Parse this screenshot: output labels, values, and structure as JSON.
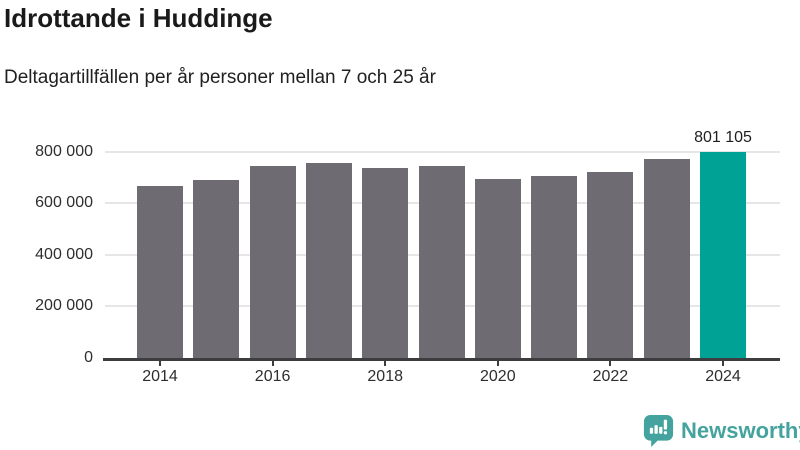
{
  "header": {
    "title": "Idrottande i Huddinge",
    "subtitle": "Deltagartillfällen per år personer mellan 7 och 25 år"
  },
  "chart_data": {
    "type": "bar",
    "title": "Idrottande i Huddinge",
    "subtitle": "Deltagartillfällen per år personer mellan 7 och 25 år",
    "categories": [
      2014,
      2015,
      2016,
      2017,
      2018,
      2019,
      2020,
      2021,
      2022,
      2023,
      2024
    ],
    "values": [
      668000,
      689000,
      747000,
      755000,
      739000,
      744000,
      696000,
      707000,
      723000,
      771000,
      801105
    ],
    "highlight_index": 10,
    "highlight_label": "801 105",
    "xlabel": "",
    "ylabel": "",
    "ylim": [
      0,
      850000
    ],
    "yticks": [
      0,
      200000,
      400000,
      600000,
      800000
    ],
    "ytick_labels": [
      "0",
      "200 000",
      "400 000",
      "600 000",
      "800 000"
    ],
    "xtick_years": [
      2014,
      2016,
      2018,
      2020,
      2022,
      2024
    ],
    "xtick_labels": [
      "2014",
      "2016",
      "2018",
      "2020",
      "2022",
      "2024"
    ],
    "grid": "horizontal",
    "legend": "none",
    "bar_color": "#6e6b73",
    "highlight_color": "#00a296"
  },
  "footer": {
    "brand": "Newsworthy",
    "logo_color": "#44a39e"
  },
  "colors": {
    "background": "#ffffff",
    "bar_gray": "#6e6b73",
    "accent_teal": "#00a296",
    "logo_teal": "#44a39e",
    "axis_line": "#3d3d3f",
    "gridline": "#e6e6e6",
    "tick_text": "#2e2e2e"
  }
}
